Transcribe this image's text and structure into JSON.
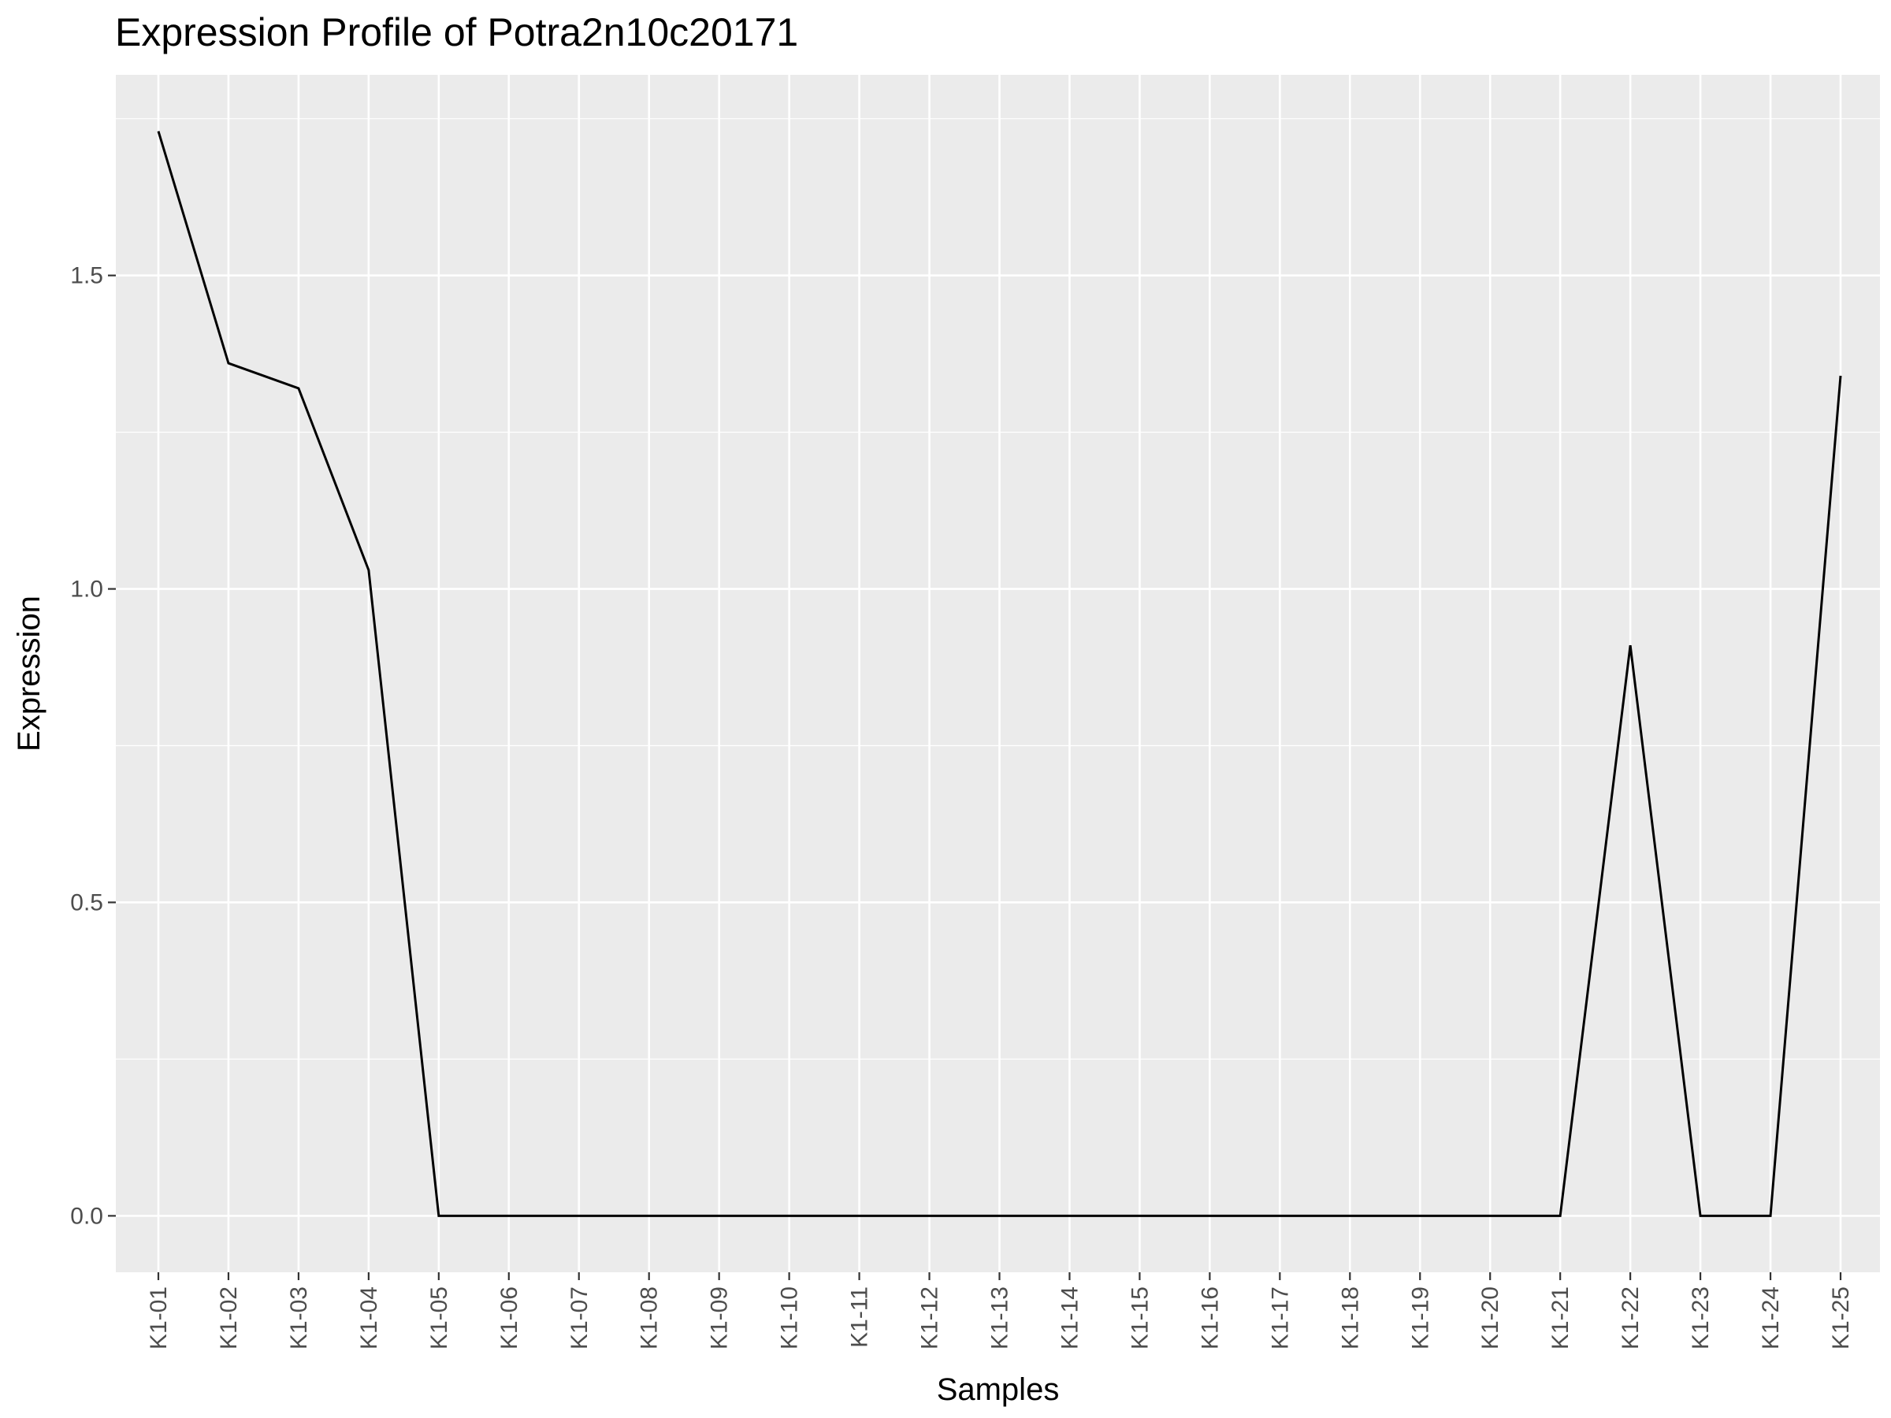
{
  "chart_data": {
    "type": "line",
    "title": "Expression Profile of Potra2n10c20171",
    "xlabel": "Samples",
    "ylabel": "Expression",
    "categories": [
      "K1-01",
      "K1-02",
      "K1-03",
      "K1-04",
      "K1-05",
      "K1-06",
      "K1-07",
      "K1-08",
      "K1-09",
      "K1-10",
      "K1-11",
      "K1-12",
      "K1-13",
      "K1-14",
      "K1-15",
      "K1-16",
      "K1-17",
      "K1-18",
      "K1-19",
      "K1-20",
      "K1-21",
      "K1-22",
      "K1-23",
      "K1-24",
      "K1-25"
    ],
    "series": [
      {
        "values": [
          1.73,
          1.36,
          1.32,
          1.03,
          0,
          0,
          0,
          0,
          0,
          0,
          0,
          0,
          0,
          0,
          0,
          0,
          0,
          0,
          0,
          0,
          0,
          0.91,
          0,
          0,
          1.34
        ]
      }
    ],
    "yticks": [
      "0.0",
      "0.5",
      "1.0",
      "1.5"
    ],
    "ylim": [
      -0.09,
      1.82
    ],
    "grid": true,
    "legend": "none",
    "colors": {
      "panel_background": "#ebebeb",
      "grid": "#ffffff",
      "line": "#000000",
      "tick_text": "#4d4d4d",
      "tick_mark": "#333333"
    }
  }
}
